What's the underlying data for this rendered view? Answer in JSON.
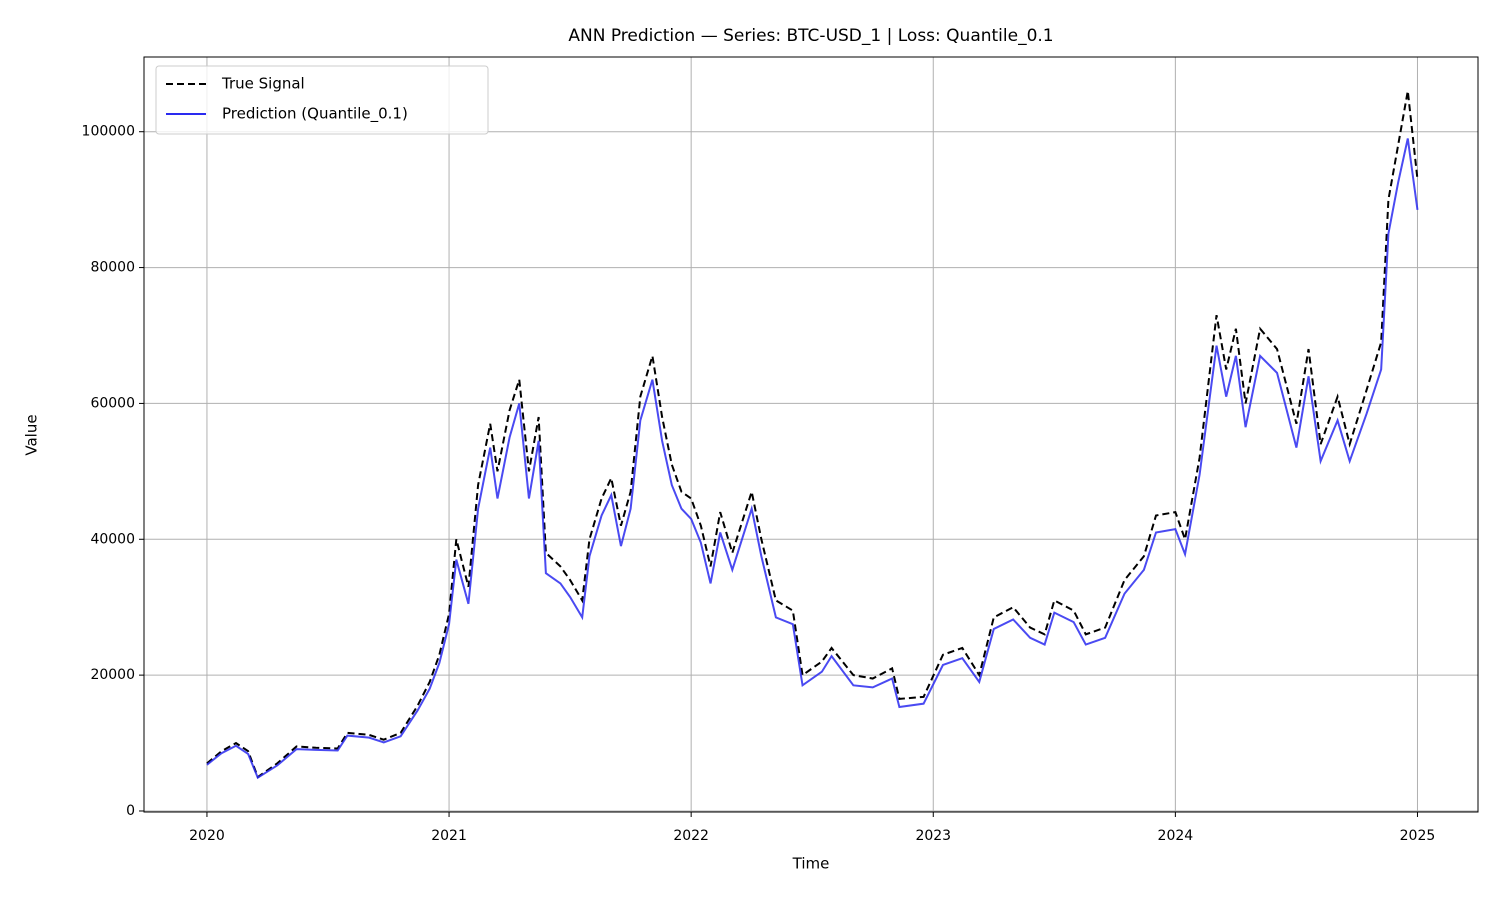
{
  "chart_data": {
    "type": "line",
    "title": "ANN Prediction — Series: BTC-USD_1 | Loss: Quantile_0.1",
    "x_label": "Time",
    "y_label": "Value",
    "x": [
      2020.0,
      2020.06,
      2020.12,
      2020.17,
      2020.21,
      2020.29,
      2020.37,
      2020.45,
      2020.54,
      2020.58,
      2020.67,
      2020.73,
      2020.8,
      2020.87,
      2020.92,
      2020.96,
      2021.0,
      2021.03,
      2021.08,
      2021.12,
      2021.17,
      2021.2,
      2021.25,
      2021.29,
      2021.33,
      2021.37,
      2021.4,
      2021.46,
      2021.5,
      2021.55,
      2021.58,
      2021.63,
      2021.67,
      2021.71,
      2021.75,
      2021.79,
      2021.84,
      2021.88,
      2021.92,
      2021.96,
      2022.0,
      2022.04,
      2022.08,
      2022.12,
      2022.17,
      2022.25,
      2022.29,
      2022.35,
      2022.42,
      2022.46,
      2022.54,
      2022.58,
      2022.67,
      2022.75,
      2022.83,
      2022.86,
      2022.96,
      2023.04,
      2023.12,
      2023.19,
      2023.25,
      2023.33,
      2023.4,
      2023.46,
      2023.5,
      2023.58,
      2023.63,
      2023.71,
      2023.79,
      2023.87,
      2023.92,
      2024.0,
      2024.04,
      2024.1,
      2024.17,
      2024.21,
      2024.25,
      2024.29,
      2024.35,
      2024.42,
      2024.5,
      2024.55,
      2024.6,
      2024.67,
      2024.72,
      2024.79,
      2024.85,
      2024.88,
      2024.92,
      2024.96,
      2025.0
    ],
    "series": [
      {
        "name": "True Signal",
        "color": "#000000",
        "linestyle": "dashed",
        "values": [
          7000,
          8800,
          10000,
          8800,
          5000,
          7000,
          9500,
          9300,
          9200,
          11500,
          11200,
          10500,
          11500,
          15500,
          19000,
          23000,
          29000,
          40000,
          33000,
          48000,
          57000,
          50000,
          59000,
          63500,
          50000,
          58000,
          38000,
          36000,
          34000,
          31000,
          40000,
          46000,
          49000,
          42000,
          47000,
          61000,
          67000,
          58000,
          51000,
          47000,
          46000,
          42000,
          36000,
          44000,
          38000,
          47000,
          40000,
          31000,
          29500,
          20000,
          22000,
          24000,
          20000,
          19500,
          21000,
          16500,
          16800,
          23000,
          24000,
          20000,
          28500,
          30000,
          27000,
          26000,
          31000,
          29500,
          26000,
          27000,
          34000,
          37500,
          43500,
          44000,
          40000,
          52000,
          73000,
          65000,
          71000,
          60000,
          71000,
          68000,
          57000,
          68000,
          54000,
          61000,
          54000,
          62000,
          69000,
          90000,
          98000,
          106000,
          93000
        ]
      },
      {
        "name": "Prediction (Quantile_0.1)",
        "color": "#2a2af0",
        "linestyle": "solid",
        "values": [
          6800,
          8500,
          9600,
          8400,
          4900,
          6700,
          9100,
          9000,
          8900,
          11100,
          10800,
          10100,
          11000,
          14800,
          18000,
          21800,
          27500,
          37000,
          30500,
          44500,
          53500,
          46000,
          55000,
          60000,
          46000,
          54500,
          35000,
          33500,
          31500,
          28500,
          37500,
          43500,
          46500,
          39000,
          44500,
          57500,
          63500,
          54500,
          48000,
          44500,
          43000,
          39500,
          33500,
          41000,
          35500,
          44500,
          37500,
          28500,
          27500,
          18500,
          20500,
          22800,
          18500,
          18200,
          19500,
          15300,
          15800,
          21500,
          22500,
          19000,
          26800,
          28200,
          25500,
          24500,
          29200,
          27800,
          24500,
          25500,
          32000,
          35500,
          41000,
          41500,
          37800,
          49500,
          68500,
          61000,
          67000,
          56500,
          67000,
          64500,
          53500,
          64000,
          51500,
          57500,
          51500,
          58500,
          65000,
          85000,
          92500,
          99000,
          88500
        ]
      }
    ],
    "xlim": [
      2019.74,
      2025.25
    ],
    "xticks": [
      2020,
      2021,
      2022,
      2023,
      2024,
      2025
    ],
    "ylim": [
      -150,
      111000
    ],
    "yticks": [
      0,
      20000,
      40000,
      60000,
      80000,
      100000
    ],
    "grid": true,
    "legend": "upper left"
  }
}
